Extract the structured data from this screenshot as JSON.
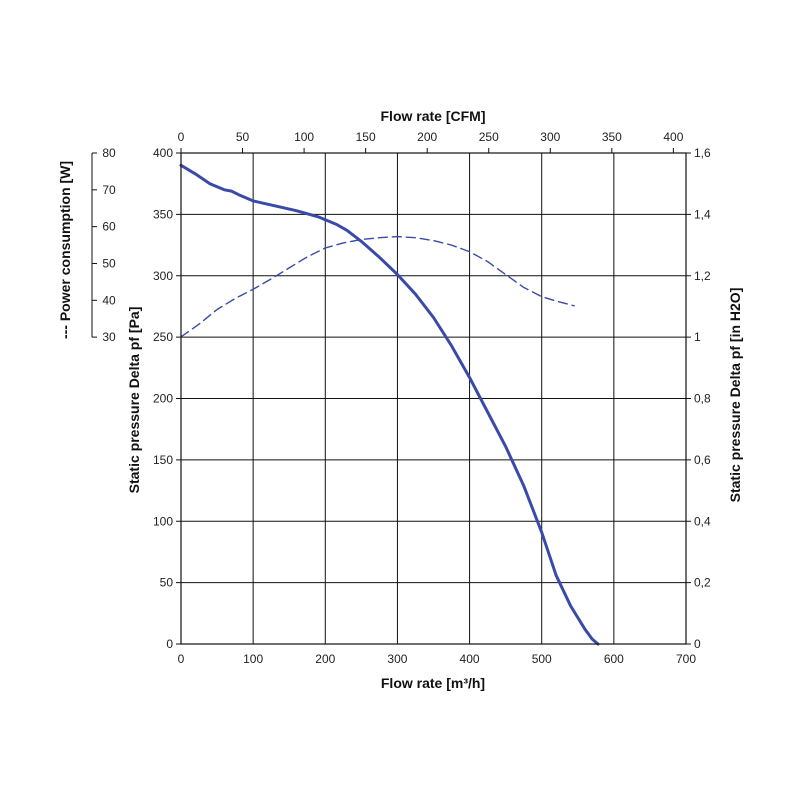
{
  "chart_data": {
    "type": "line",
    "xlabel": "Flow rate [m³/h]",
    "x2label": "Flow rate [CFM]",
    "ylabel": "Static pressure Delta pf [Pa]",
    "y2label": "Static pressure Delta pf [in H2O]",
    "y3label": "--- Power consumption [W]",
    "xlim": [
      0,
      700
    ],
    "ylim": [
      0,
      400
    ],
    "x2lim": [
      0,
      400
    ],
    "x_ticks": [
      "0",
      "100",
      "200",
      "300",
      "400",
      "500",
      "600",
      "700"
    ],
    "y_ticks": [
      "0",
      "50",
      "100",
      "150",
      "200",
      "250",
      "300",
      "350",
      "400"
    ],
    "x2_ticks": [
      "0",
      "50",
      "100",
      "150",
      "200",
      "250",
      "300",
      "350",
      "400"
    ],
    "y2_ticks": [
      "0",
      "0,2",
      "0,4",
      "0,6",
      "0,8",
      "1",
      "1,2",
      "1,4",
      "1,6"
    ],
    "y3_ticks": [
      "30",
      "40",
      "50",
      "60",
      "70",
      "80"
    ],
    "y3lim": [
      30,
      80
    ],
    "grid": true,
    "series": [
      {
        "style": "solid",
        "axis": "pressure",
        "color": "#3a4aa8",
        "points": [
          [
            0,
            390
          ],
          [
            20,
            383
          ],
          [
            40,
            375
          ],
          [
            60,
            370
          ],
          [
            70,
            369
          ],
          [
            80,
            366
          ],
          [
            100,
            361
          ],
          [
            130,
            357
          ],
          [
            160,
            353
          ],
          [
            190,
            348
          ],
          [
            215,
            342
          ],
          [
            230,
            337
          ],
          [
            250,
            328
          ],
          [
            275,
            315
          ],
          [
            300,
            301
          ],
          [
            325,
            285
          ],
          [
            350,
            266
          ],
          [
            375,
            243
          ],
          [
            400,
            217
          ],
          [
            425,
            189
          ],
          [
            450,
            161
          ],
          [
            475,
            129
          ],
          [
            500,
            91
          ],
          [
            520,
            56
          ],
          [
            540,
            31
          ],
          [
            560,
            12
          ],
          [
            570,
            4
          ],
          [
            578,
            0
          ]
        ]
      },
      {
        "style": "dashed",
        "axis": "power",
        "color": "#3a4aa8",
        "points": [
          [
            0,
            30.1
          ],
          [
            25,
            33.5
          ],
          [
            50,
            37.5
          ],
          [
            75,
            40.5
          ],
          [
            100,
            43
          ],
          [
            125,
            45.8
          ],
          [
            150,
            48.8
          ],
          [
            175,
            51.8
          ],
          [
            200,
            54.2
          ],
          [
            225,
            55.6
          ],
          [
            250,
            56.5
          ],
          [
            275,
            57
          ],
          [
            300,
            57.3
          ],
          [
            325,
            57
          ],
          [
            350,
            56.2
          ],
          [
            375,
            55
          ],
          [
            400,
            53.2
          ],
          [
            425,
            50.5
          ],
          [
            450,
            47
          ],
          [
            475,
            43.5
          ],
          [
            500,
            41
          ],
          [
            520,
            39.8
          ],
          [
            545,
            38.5
          ]
        ]
      }
    ]
  }
}
